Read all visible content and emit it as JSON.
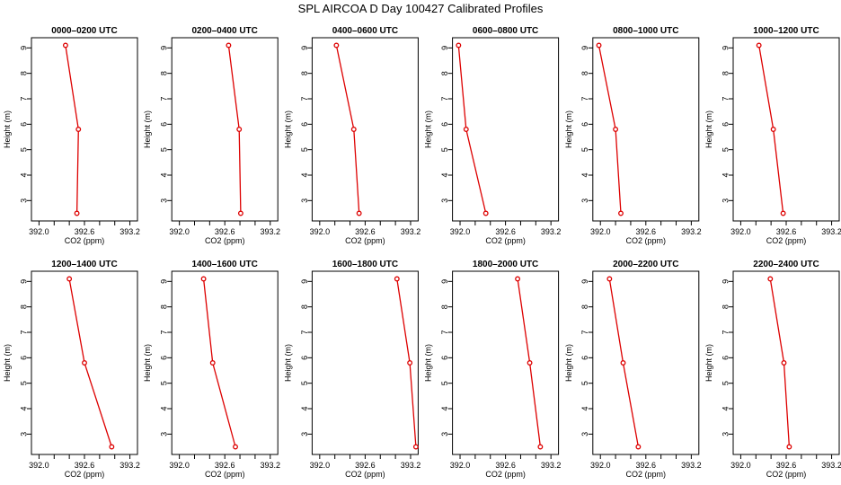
{
  "figure_title": "SPL AIRCOA D  Day 100427  Calibrated Profiles",
  "colors": {
    "line": "#dd0000",
    "axis": "#000000"
  },
  "chart_data": [
    {
      "type": "line",
      "title": "0000–0200 UTC",
      "xlabel": "CO2 (ppm)",
      "ylabel": "Height (m)",
      "xlim": [
        391.9,
        393.3
      ],
      "ylim": [
        2.2,
        9.4
      ],
      "x": [
        392.35,
        392.52,
        392.5
      ],
      "y": [
        9.1,
        5.8,
        2.5
      ],
      "xticks": [
        "392.0",
        "392.2",
        "392.4",
        "392.6",
        "392.8",
        "393.0",
        "393.2"
      ],
      "xtick_labels": [
        "392.0",
        "392.6",
        "393.2"
      ],
      "yticks": [
        "3",
        "4",
        "5",
        "6",
        "7",
        "8",
        "9"
      ]
    },
    {
      "type": "line",
      "title": "0200–0400 UTC",
      "xlabel": "CO2 (ppm)",
      "ylabel": "Height (m)",
      "xlim": [
        391.9,
        393.3
      ],
      "ylim": [
        2.2,
        9.4
      ],
      "x": [
        392.65,
        392.79,
        392.81
      ],
      "y": [
        9.1,
        5.8,
        2.5
      ],
      "xticks": [
        "392.0",
        "392.2",
        "392.4",
        "392.6",
        "392.8",
        "393.0",
        "393.2"
      ],
      "xtick_labels": [
        "392.0",
        "392.6",
        "393.2"
      ],
      "yticks": [
        "3",
        "4",
        "5",
        "6",
        "7",
        "8",
        "9"
      ]
    },
    {
      "type": "line",
      "title": "0400–0600 UTC",
      "xlabel": "CO2 (ppm)",
      "ylabel": "Height (m)",
      "xlim": [
        391.9,
        393.3
      ],
      "ylim": [
        2.2,
        9.4
      ],
      "x": [
        392.22,
        392.45,
        392.52
      ],
      "y": [
        9.1,
        5.8,
        2.5
      ],
      "xticks": [
        "392.0",
        "392.2",
        "392.4",
        "392.6",
        "392.8",
        "393.0",
        "393.2"
      ],
      "xtick_labels": [
        "392.0",
        "392.6",
        "393.2"
      ],
      "yticks": [
        "3",
        "4",
        "5",
        "6",
        "7",
        "8",
        "9"
      ]
    },
    {
      "type": "line",
      "title": "0600–0800 UTC",
      "xlabel": "CO2 (ppm)",
      "ylabel": "Height (m)",
      "xlim": [
        391.9,
        393.3
      ],
      "ylim": [
        2.2,
        9.4
      ],
      "x": [
        391.98,
        392.08,
        392.34
      ],
      "y": [
        9.1,
        5.8,
        2.5
      ],
      "xticks": [
        "392.0",
        "392.2",
        "392.4",
        "392.6",
        "392.8",
        "393.0",
        "393.2"
      ],
      "xtick_labels": [
        "392.0",
        "392.6",
        "393.2"
      ],
      "yticks": [
        "3",
        "4",
        "5",
        "6",
        "7",
        "8",
        "9"
      ]
    },
    {
      "type": "line",
      "title": "0800–1000 UTC",
      "xlabel": "CO2 (ppm)",
      "ylabel": "Height (m)",
      "xlim": [
        391.9,
        393.3
      ],
      "ylim": [
        2.2,
        9.4
      ],
      "x": [
        391.98,
        392.2,
        392.27
      ],
      "y": [
        9.1,
        5.8,
        2.5
      ],
      "xticks": [
        "392.0",
        "392.2",
        "392.4",
        "392.6",
        "392.8",
        "393.0",
        "393.2"
      ],
      "xtick_labels": [
        "392.0",
        "392.6",
        "393.2"
      ],
      "yticks": [
        "3",
        "4",
        "5",
        "6",
        "7",
        "8",
        "9"
      ]
    },
    {
      "type": "line",
      "title": "1000–1200 UTC",
      "xlabel": "CO2 (ppm)",
      "ylabel": "Height (m)",
      "xlim": [
        391.9,
        393.3
      ],
      "ylim": [
        2.2,
        9.4
      ],
      "x": [
        392.24,
        392.43,
        392.56
      ],
      "y": [
        9.1,
        5.8,
        2.5
      ],
      "xticks": [
        "392.0",
        "392.2",
        "392.4",
        "392.6",
        "392.8",
        "393.0",
        "393.2"
      ],
      "xtick_labels": [
        "392.0",
        "392.6",
        "393.2"
      ],
      "yticks": [
        "3",
        "4",
        "5",
        "6",
        "7",
        "8",
        "9"
      ]
    },
    {
      "type": "line",
      "title": "1200–1400 UTC",
      "xlabel": "CO2 (ppm)",
      "ylabel": "Height (m)",
      "xlim": [
        391.9,
        393.3
      ],
      "ylim": [
        2.2,
        9.4
      ],
      "x": [
        392.4,
        392.6,
        392.96
      ],
      "y": [
        9.1,
        5.8,
        2.5
      ],
      "xticks": [
        "392.0",
        "392.2",
        "392.4",
        "392.6",
        "392.8",
        "393.0",
        "393.2"
      ],
      "xtick_labels": [
        "392.0",
        "392.6",
        "393.2"
      ],
      "yticks": [
        "3",
        "4",
        "5",
        "6",
        "7",
        "8",
        "9"
      ]
    },
    {
      "type": "line",
      "title": "1400–1600 UTC",
      "xlabel": "CO2 (ppm)",
      "ylabel": "Height (m)",
      "xlim": [
        391.9,
        393.3
      ],
      "ylim": [
        2.2,
        9.4
      ],
      "x": [
        392.32,
        392.44,
        392.74
      ],
      "y": [
        9.1,
        5.8,
        2.5
      ],
      "xticks": [
        "392.0",
        "392.2",
        "392.4",
        "392.6",
        "392.8",
        "393.0",
        "393.2"
      ],
      "xtick_labels": [
        "392.0",
        "392.6",
        "393.2"
      ],
      "yticks": [
        "3",
        "4",
        "5",
        "6",
        "7",
        "8",
        "9"
      ]
    },
    {
      "type": "line",
      "title": "1600–1800 UTC",
      "xlabel": "CO2 (ppm)",
      "ylabel": "Height (m)",
      "xlim": [
        391.9,
        393.3
      ],
      "ylim": [
        2.2,
        9.4
      ],
      "x": [
        393.02,
        393.19,
        393.27
      ],
      "y": [
        9.1,
        5.8,
        2.5
      ],
      "xticks": [
        "392.0",
        "392.2",
        "392.4",
        "392.6",
        "392.8",
        "393.0",
        "393.2"
      ],
      "xtick_labels": [
        "392.0",
        "392.6",
        "393.2"
      ],
      "yticks": [
        "3",
        "4",
        "5",
        "6",
        "7",
        "8",
        "9"
      ]
    },
    {
      "type": "line",
      "title": "1800–2000 UTC",
      "xlabel": "CO2 (ppm)",
      "ylabel": "Height (m)",
      "xlim": [
        391.9,
        393.3
      ],
      "ylim": [
        2.2,
        9.4
      ],
      "x": [
        392.76,
        392.92,
        393.06
      ],
      "y": [
        9.1,
        5.8,
        2.5
      ],
      "xticks": [
        "392.0",
        "392.2",
        "392.4",
        "392.6",
        "392.8",
        "393.0",
        "393.2"
      ],
      "xtick_labels": [
        "392.0",
        "392.6",
        "393.2"
      ],
      "yticks": [
        "3",
        "4",
        "5",
        "6",
        "7",
        "8",
        "9"
      ]
    },
    {
      "type": "line",
      "title": "2000–2200 UTC",
      "xlabel": "CO2 (ppm)",
      "ylabel": "Height (m)",
      "xlim": [
        391.9,
        393.3
      ],
      "ylim": [
        2.2,
        9.4
      ],
      "x": [
        392.12,
        392.3,
        392.5
      ],
      "y": [
        9.1,
        5.8,
        2.5
      ],
      "xticks": [
        "392.0",
        "392.2",
        "392.4",
        "392.6",
        "392.8",
        "393.0",
        "393.2"
      ],
      "xtick_labels": [
        "392.0",
        "392.6",
        "393.2"
      ],
      "yticks": [
        "3",
        "4",
        "5",
        "6",
        "7",
        "8",
        "9"
      ]
    },
    {
      "type": "line",
      "title": "2200–2400 UTC",
      "xlabel": "CO2 (ppm)",
      "ylabel": "Height (m)",
      "xlim": [
        391.9,
        393.3
      ],
      "ylim": [
        2.2,
        9.4
      ],
      "x": [
        392.39,
        392.57,
        392.64
      ],
      "y": [
        9.1,
        5.8,
        2.5
      ],
      "xticks": [
        "392.0",
        "392.2",
        "392.4",
        "392.6",
        "392.8",
        "393.0",
        "393.2"
      ],
      "xtick_labels": [
        "392.0",
        "392.6",
        "393.2"
      ],
      "yticks": [
        "3",
        "4",
        "5",
        "6",
        "7",
        "8",
        "9"
      ]
    }
  ]
}
